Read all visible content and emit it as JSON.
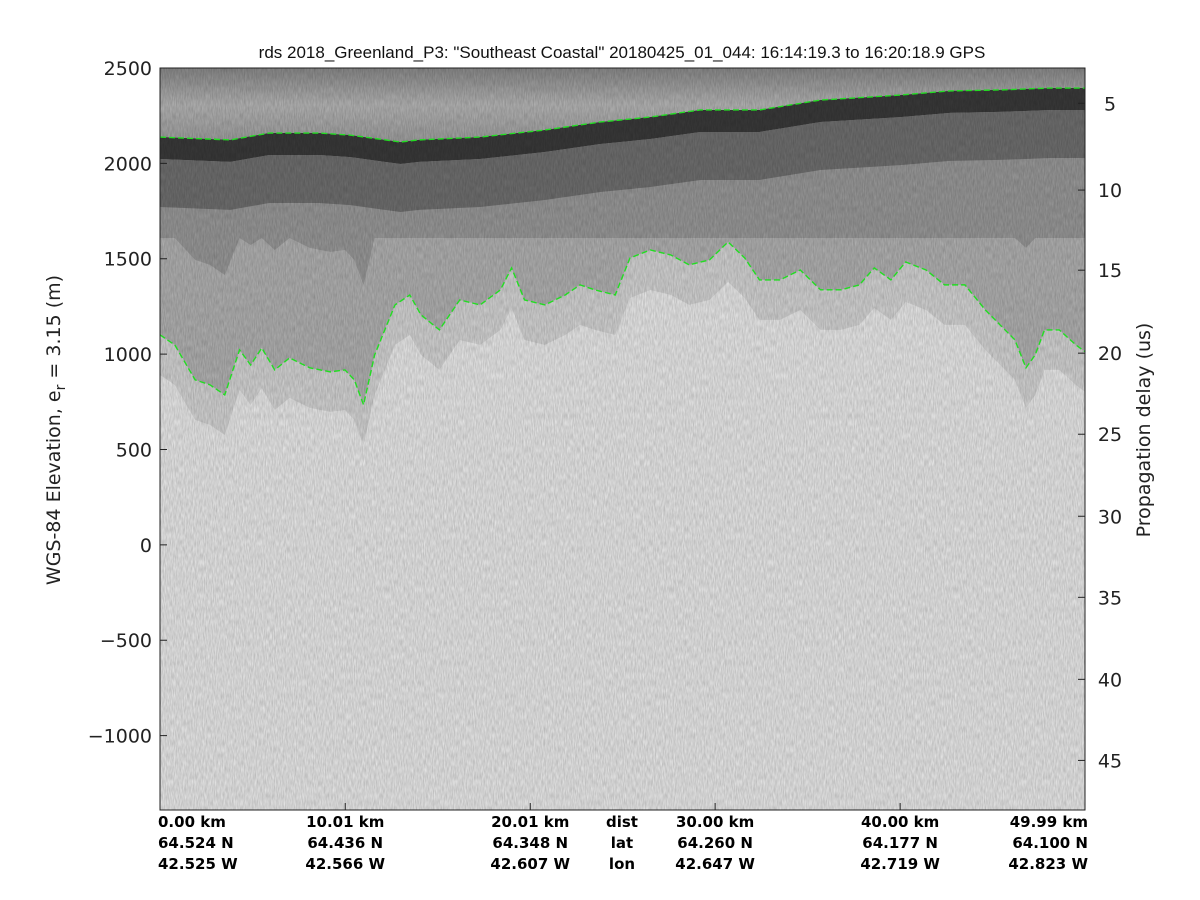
{
  "chart_data": {
    "type": "line",
    "title": "rds 2018_Greenland_P3: \"Southeast Coastal\"  20180425_01_044: 16:14:19.3 to 16:20:18.9 GPS",
    "ylabel_left_main": "WGS-84 Elevation, e",
    "ylabel_left_sub": "r",
    "ylabel_left_rest": " = 3.15 (m)",
    "ylabel_right": "Propagation delay (us)",
    "xlim_km": [
      0,
      49.99
    ],
    "ylim": [
      -1390,
      2500
    ],
    "grid": false,
    "background": "radar echogram (grayscale)",
    "line_color": "#22dd22",
    "line_style": "dashed",
    "y_ticks_left": [
      2500,
      2000,
      1500,
      1000,
      500,
      0,
      -500,
      -1000
    ],
    "y_tick_labels_left": [
      "2500",
      "2000",
      "1500",
      "1000",
      "500",
      "0",
      "−500",
      "−1000"
    ],
    "y_ticks_right": [
      5,
      10,
      15,
      20,
      25,
      30,
      35,
      40,
      45
    ],
    "y_ticks_right_elev": [
      2315,
      1860,
      1440,
      1005,
      580,
      150,
      -275,
      -705,
      -1130
    ],
    "x_ticks": [
      {
        "km": 0,
        "dist": "0.00 km",
        "lat": "64.524 N",
        "lon": "42.525 W"
      },
      {
        "km": 10.01,
        "dist": "10.01 km",
        "lat": "64.436 N",
        "lon": "42.566 W"
      },
      {
        "km": 20.01,
        "dist": "20.01 km",
        "lat": "64.348 N",
        "lon": "42.607 W"
      },
      {
        "km": 30.0,
        "dist": "30.00 km",
        "lat": "64.260 N",
        "lon": "42.647 W"
      },
      {
        "km": 40.0,
        "dist": "40.00 km",
        "lat": "64.177 N",
        "lon": "42.719 W"
      },
      {
        "km": 49.99,
        "dist": "49.99 km",
        "lat": "64.100 N",
        "lon": "42.823 W"
      }
    ],
    "row_labels": {
      "dist": "dist",
      "lat": "lat",
      "lon": "lon"
    },
    "series": [
      {
        "x": [
          0,
          3.8,
          5.9,
          8.6,
          10.3,
          13,
          14,
          17.3,
          20.8,
          23.8,
          26.5,
          29.2,
          32.4,
          35.7,
          40,
          42.7,
          45.4,
          48.1,
          50
        ],
        "values": [
          2138,
          2123,
          2159,
          2159,
          2148,
          2112,
          2123,
          2138,
          2175,
          2217,
          2243,
          2280,
          2280,
          2332,
          2358,
          2380,
          2385,
          2395,
          2395
        ]
      },
      {
        "x": [
          0,
          0.8,
          1.9,
          2.7,
          3.5,
          4.3,
          4.9,
          5.5,
          6.2,
          7.0,
          8.1,
          9.2,
          10.0,
          10.5,
          11.0,
          11.6,
          12.7,
          13.5,
          14.1,
          15.1,
          16.2,
          17.3,
          18.4,
          19.0,
          19.7,
          20.8,
          21.9,
          22.7,
          23.5,
          24.6,
          25.4,
          26.5,
          27.6,
          28.6,
          29.7,
          30.7,
          31.6,
          32.4,
          33.5,
          34.6,
          35.7,
          36.8,
          37.8,
          38.6,
          39.5,
          40.3,
          41.4,
          42.4,
          43.5,
          44.6,
          45.4,
          46.2,
          46.8,
          47.3,
          47.8,
          48.6,
          49.5,
          50
        ],
        "values": [
          1101,
          1048,
          865,
          839,
          786,
          1022,
          943,
          1032,
          917,
          980,
          928,
          907,
          917,
          865,
          734,
          996,
          1258,
          1310,
          1206,
          1127,
          1284,
          1258,
          1337,
          1452,
          1284,
          1258,
          1310,
          1363,
          1337,
          1310,
          1504,
          1546,
          1520,
          1468,
          1494,
          1588,
          1504,
          1389,
          1389,
          1441,
          1337,
          1337,
          1363,
          1452,
          1389,
          1483,
          1441,
          1363,
          1363,
          1232,
          1153,
          1075,
          928,
          996,
          1127,
          1127,
          1048,
          1012
        ]
      }
    ]
  }
}
